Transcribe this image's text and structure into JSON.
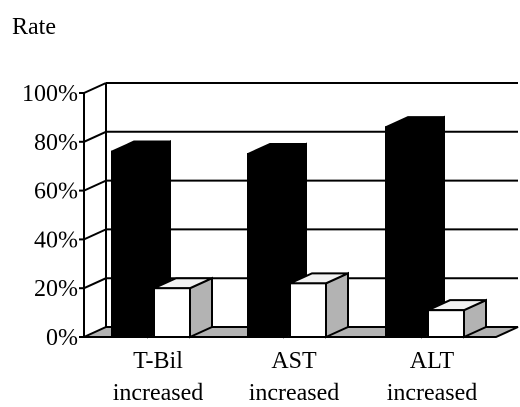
{
  "chart_data": {
    "type": "bar",
    "ylabel": "Rate",
    "ylim": [
      0,
      100
    ],
    "y_ticks": [
      "0%",
      "20%",
      "40%",
      "60%",
      "80%",
      "100%"
    ],
    "categories": [
      {
        "line1": "T-Bil",
        "line2": "increased"
      },
      {
        "line1": "AST",
        "line2": "increased"
      },
      {
        "line1": "ALT",
        "line2": "increased"
      }
    ],
    "series": [
      {
        "color": "#000000",
        "values": [
          76,
          75,
          86
        ]
      },
      {
        "color": "#ffffff",
        "values": [
          20,
          22,
          11
        ]
      }
    ],
    "style": "3d",
    "grid": true,
    "floor_color": "#b3b3b3",
    "bar_side_color": "#b3b3b3"
  }
}
